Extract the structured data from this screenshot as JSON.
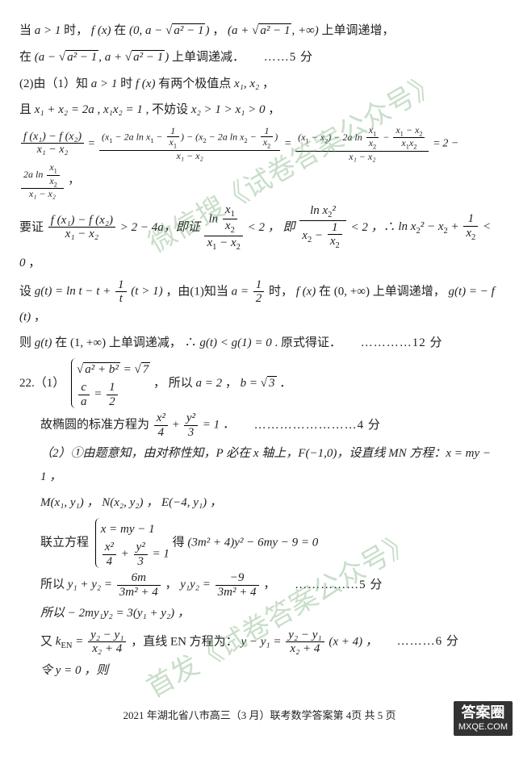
{
  "watermarks": {
    "wm1": "微信搜《试卷答案公众号》",
    "wm2": "首发《试卷答案公众号》"
  },
  "p1": {
    "prefix": "当 ",
    "cond": "a > 1",
    "mid": " 时，",
    "fx": "f (x)",
    "at": " 在 ",
    "int1a": "(0, a − ",
    "int1rad": "a² − 1",
    "int1b": ")",
    "comma": "，",
    "int2a": "(a + ",
    "int2rad": "a² − 1",
    "int2b": ", +∞)",
    "tail": " 上单调递增，"
  },
  "p2": {
    "at": "在 ",
    "intA": "(a − ",
    "rad": "a² − 1",
    "intMid": ", a + ",
    "intB": ")",
    "tail": " 上单调递减．",
    "score": "……5 分"
  },
  "p3": {
    "text1": "(2)由（1）知 ",
    "cond": "a > 1",
    "text2": " 时 ",
    "fx": "f (x)",
    "text3": " 有两个极值点 ",
    "x1": "x₁",
    "x2": "x₂",
    "tail": " ，"
  },
  "p4": {
    "text1": "且 ",
    "eq1": "x₁ + x₂ = 2a",
    "text2": ", ",
    "eq2": "x₁x₂ = 1",
    "text3": ", 不妨设 ",
    "ord": "x₂ > 1 > x₁ > 0",
    "tail": " ，"
  },
  "bigfrac": {
    "lhs_num": "f (x₁) − f (x₂)",
    "lhs_den": "x₁ − x₂",
    "eq": " = ",
    "mid1_num": "(x₁ − 2a ln x₁ − 1/x₁) − (x₂ − 2a ln x₂ − 1/x₂)",
    "mid1_den": "x₁ − x₂",
    "mid2_num_a": "(x₁ − x₂) − 2a ln ",
    "mid2_num_b": " − ",
    "mid2_den": "x₁ − x₂",
    "rhs_a": "2 − ",
    "rhs_num": "2a ln (x₁/x₂)",
    "rhs_den": "x₁ − x₂",
    "tail": "，"
  },
  "p6": {
    "text1": "要证 ",
    "text2": " > 2 − 4a，即证 ",
    "text3": " < 2 ， 即 ",
    "text4": " < 2 ，∴ ",
    "text5": "ln x₂² − x₂ + 1/x₂ < 0",
    "tail": "，"
  },
  "p7": {
    "text1": "设 ",
    "gdef": "g(t) = ln t − t + 1/t (t > 1)",
    "text2": "，由(1)知当 ",
    "aeq_num": "1",
    "aeq_den": "2",
    "aeq_pre": "a = ",
    "text3": " 时，",
    "fx": "f (x)",
    "text4": " 在 (0, +∞) 上单调递增，",
    "grel": "g(t) = − f (t)",
    "tail": " ，"
  },
  "p8": {
    "text1": "则 ",
    "gt": "g(t)",
    "text2": " 在 (1, +∞) 上单调递减， ∴ ",
    "ineq": "g(t) < g(1) = 0",
    "text3": " . 原式得证．",
    "score": "…………12 分"
  },
  "q22": {
    "label": "22.（1）",
    "row1_rad": "a² + b²",
    "row1_eq": " = ",
    "row1_rhs_rad": "7",
    "row2_num": "c",
    "row2_den": "a",
    "row2_eq": " = ",
    "row2_rhs_num": "1",
    "row2_rhs_den": "2",
    "text1": " ， 所以 ",
    "aval": "a = 2",
    "text2": " ， ",
    "bval_pre": "b = ",
    "bval_rad": "3",
    "tail": " ．"
  },
  "q22b": {
    "text1": "故椭圆的标准方程为 ",
    "num1": "x²",
    "den1": "4",
    "plus": " + ",
    "num2": "y²",
    "den2": "3",
    "eq": " = 1 ．",
    "score": "……………………4 分"
  },
  "q22c": {
    "text": "（2）①由题意知，由对称性知，P 必在 x 轴上，F(−1,0)，设直线 MN 方程：x = my − 1 ，"
  },
  "q22d": {
    "text": "M(x₁, y₁) ， N(x₂, y₂) ， E(−4, y₁) ，"
  },
  "q22e": {
    "text1": "联立方程 ",
    "row1": "x = my − 1",
    "row2_a": "x²",
    "row2_b": "4",
    "row2_c": "y²",
    "row2_d": "3",
    "row2_e": " = 1",
    "text2": " 得 ",
    "eqn": "(3m² + 4)y² − 6my − 9 = 0"
  },
  "q22f": {
    "text1": "所以 ",
    "lhs1": "y₁ + y₂ = ",
    "num1": "6m",
    "den1": "3m² + 4",
    "text2": " ， ",
    "lhs2": "y₁y₂ = ",
    "num2": "−9",
    "den2": "3m² + 4",
    "tail": " ，",
    "score": "……………5 分"
  },
  "q22g": {
    "text": "所以 − 2my₁y₂ = 3(y₁ + y₂) ，"
  },
  "q22h": {
    "text1": "又 ",
    "klabel": "k_EN = ",
    "num": "y₂ − y₁",
    "den": "x₂ + 4",
    "text2": " ，直线 EN 方程为：",
    "eqlhs": "y − y₁ = ",
    "text3": " (x + 4) ，",
    "score": "………6 分"
  },
  "q22i": {
    "text": "令 y = 0 ，则"
  },
  "footer": "2021 年湖北省八市高三（3 月）联考数学答案第 4页   共 5 页",
  "logo": {
    "big": "答案圈",
    "small": "MXQE.COM"
  },
  "colors": {
    "text": "#222222",
    "watermark": "rgba(100,160,100,0.35)",
    "bg": "#ffffff"
  }
}
